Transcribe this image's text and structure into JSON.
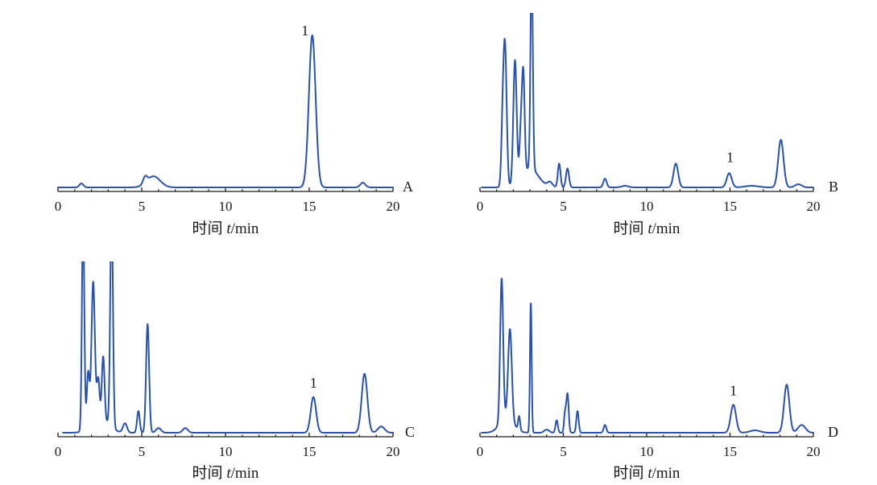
{
  "figure": {
    "line_color": "#2a52a8",
    "axis_color": "#1a1a1a",
    "background": "#ffffff"
  },
  "chart_data": [
    {
      "type": "line",
      "panel": "A",
      "title": "",
      "xlabel_prefix": "时间 ",
      "xlabel_var": "t",
      "xlabel_unit": "/min",
      "ylabel": "",
      "xlim": [
        0,
        20
      ],
      "xticks": [
        0,
        5,
        10,
        15,
        20
      ],
      "tick_labels": [
        "0",
        "5",
        "10",
        "15",
        "20"
      ],
      "grid": false,
      "baseline": 0,
      "ymax": 100,
      "peaks": [
        {
          "rt": 1.4,
          "h": 2.5,
          "w": 0.12
        },
        {
          "rt": 5.2,
          "h": 4,
          "w": 0.12
        },
        {
          "rt": 5.7,
          "h": 7,
          "w": 0.4
        },
        {
          "rt": 15.18,
          "h": 96,
          "w": 0.2
        },
        {
          "rt": 18.2,
          "h": 3,
          "w": 0.15
        }
      ],
      "annotations": [
        {
          "text": "1",
          "x": 14.75,
          "y": 96
        }
      ]
    },
    {
      "type": "line",
      "panel": "B",
      "title": "",
      "xlabel_prefix": "时间 ",
      "xlabel_var": "t",
      "xlabel_unit": "/min",
      "ylabel": "",
      "xlim": [
        0,
        20
      ],
      "xticks": [
        0,
        5,
        10,
        15,
        20
      ],
      "tick_labels": [
        "0",
        "5",
        "10",
        "15",
        "20"
      ],
      "grid": false,
      "baseline": 0,
      "ymax": 100,
      "peaks": [
        {
          "rt": 1.35,
          "h": 28,
          "w": 0.08
        },
        {
          "rt": 1.5,
          "h": 88,
          "w": 0.1
        },
        {
          "rt": 2.1,
          "h": 78,
          "w": 0.1
        },
        {
          "rt": 2.45,
          "h": 28,
          "w": 0.08
        },
        {
          "rt": 2.6,
          "h": 62,
          "w": 0.08
        },
        {
          "rt": 3.1,
          "h": 130,
          "w": 0.07
        },
        {
          "rt": 3.0,
          "h": 12,
          "w": 0.5
        },
        {
          "rt": 4.2,
          "h": 3,
          "w": 0.15
        },
        {
          "rt": 4.75,
          "h": 15,
          "w": 0.08
        },
        {
          "rt": 5.25,
          "h": 12,
          "w": 0.09
        },
        {
          "rt": 7.5,
          "h": 5.5,
          "w": 0.1
        },
        {
          "rt": 8.7,
          "h": 1,
          "w": 0.2
        },
        {
          "rt": 11.75,
          "h": 15,
          "w": 0.14
        },
        {
          "rt": 14.95,
          "h": 9,
          "w": 0.15
        },
        {
          "rt": 16.3,
          "h": 1,
          "w": 0.4
        },
        {
          "rt": 18.05,
          "h": 30,
          "w": 0.16
        },
        {
          "rt": 19.1,
          "h": 2,
          "w": 0.2
        }
      ],
      "annotations": [
        {
          "text": "1",
          "x": 15.0,
          "y": 16
        }
      ]
    },
    {
      "type": "line",
      "panel": "C",
      "title": "",
      "xlabel_prefix": "时间 ",
      "xlabel_var": "t",
      "xlabel_unit": "/min",
      "ylabel": "",
      "xlim": [
        0,
        20
      ],
      "xticks": [
        0,
        5,
        10,
        15,
        20
      ],
      "tick_labels": [
        "0",
        "5",
        "10",
        "15",
        "20"
      ],
      "grid": false,
      "baseline": 0,
      "ymax": 100,
      "peaks": [
        {
          "rt": 1.5,
          "h": 140,
          "w": 0.07
        },
        {
          "rt": 1.8,
          "h": 35,
          "w": 0.08
        },
        {
          "rt": 2.1,
          "h": 90,
          "w": 0.1
        },
        {
          "rt": 2.4,
          "h": 25,
          "w": 0.08
        },
        {
          "rt": 2.7,
          "h": 40,
          "w": 0.08
        },
        {
          "rt": 3.2,
          "h": 140,
          "w": 0.08
        },
        {
          "rt": 2.5,
          "h": 10,
          "w": 0.5
        },
        {
          "rt": 4.0,
          "h": 6,
          "w": 0.12
        },
        {
          "rt": 4.8,
          "h": 14,
          "w": 0.08
        },
        {
          "rt": 5.35,
          "h": 70,
          "w": 0.09
        },
        {
          "rt": 6.0,
          "h": 3,
          "w": 0.15
        },
        {
          "rt": 7.6,
          "h": 3,
          "w": 0.15
        },
        {
          "rt": 15.25,
          "h": 23,
          "w": 0.16
        },
        {
          "rt": 18.3,
          "h": 38,
          "w": 0.17
        },
        {
          "rt": 19.3,
          "h": 4,
          "w": 0.2
        }
      ],
      "annotations": [
        {
          "text": "1",
          "x": 15.25,
          "y": 29
        }
      ]
    },
    {
      "type": "line",
      "panel": "D",
      "title": "",
      "xlabel_prefix": "时间 ",
      "xlabel_var": "t",
      "xlabel_unit": "/min",
      "ylabel": "",
      "xlim": [
        0,
        20
      ],
      "xticks": [
        0,
        5,
        10,
        15,
        20
      ],
      "tick_labels": [
        "0",
        "5",
        "10",
        "15",
        "20"
      ],
      "grid": false,
      "baseline": 0,
      "ymax": 100,
      "peaks": [
        {
          "rt": 1.3,
          "h": 92,
          "w": 0.09
        },
        {
          "rt": 1.8,
          "h": 58,
          "w": 0.11
        },
        {
          "rt": 1.6,
          "h": 10,
          "w": 0.4
        },
        {
          "rt": 2.35,
          "h": 9,
          "w": 0.06
        },
        {
          "rt": 3.05,
          "h": 84,
          "w": 0.05
        },
        {
          "rt": 4.0,
          "h": 2,
          "w": 0.15
        },
        {
          "rt": 4.6,
          "h": 8,
          "w": 0.07
        },
        {
          "rt": 5.1,
          "h": 12,
          "w": 0.06
        },
        {
          "rt": 5.25,
          "h": 25,
          "w": 0.07
        },
        {
          "rt": 5.85,
          "h": 14,
          "w": 0.07
        },
        {
          "rt": 7.5,
          "h": 5,
          "w": 0.08
        },
        {
          "rt": 15.2,
          "h": 18,
          "w": 0.16
        },
        {
          "rt": 16.5,
          "h": 1.5,
          "w": 0.3
        },
        {
          "rt": 18.4,
          "h": 31,
          "w": 0.16
        },
        {
          "rt": 19.3,
          "h": 5,
          "w": 0.22
        }
      ],
      "annotations": [
        {
          "text": "1",
          "x": 15.2,
          "y": 24
        }
      ]
    }
  ]
}
